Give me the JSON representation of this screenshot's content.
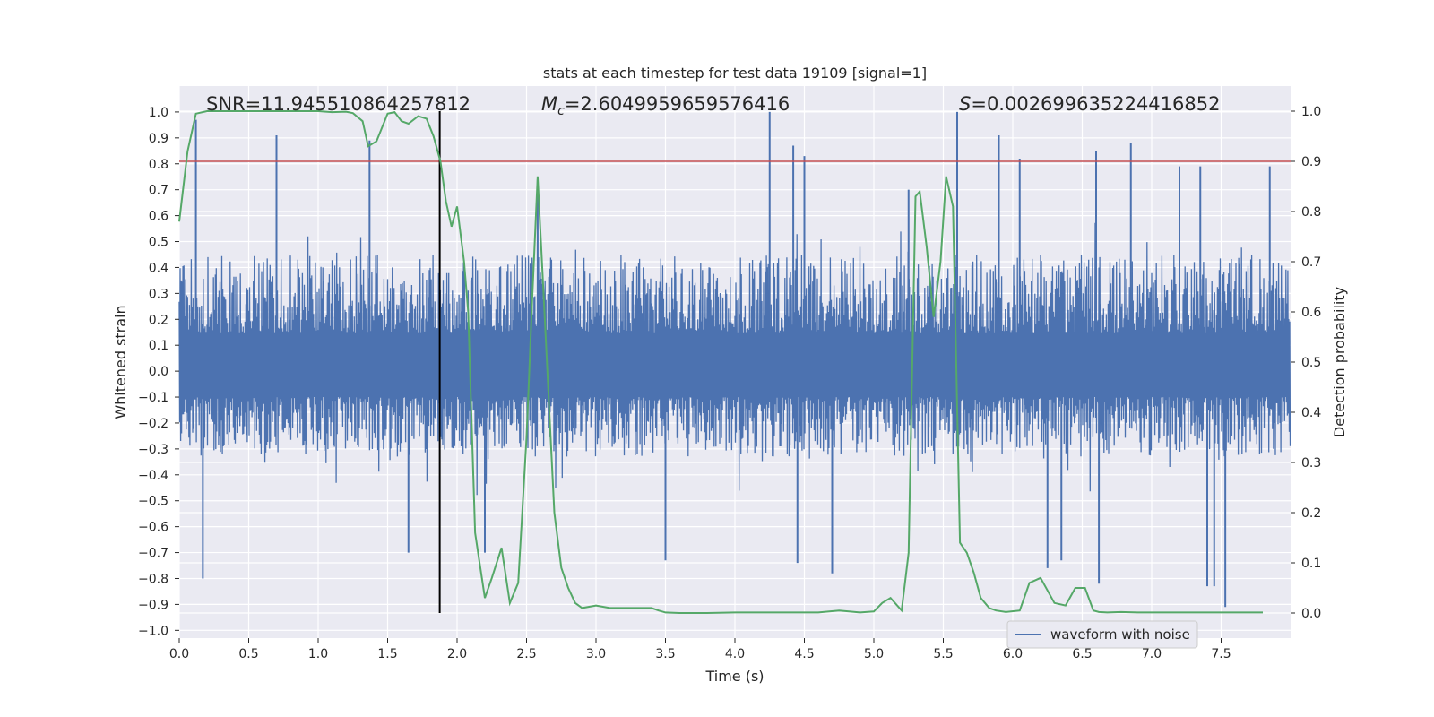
{
  "chart_data": {
    "type": "line",
    "title": "stats at each timestep for test data 19109 [signal=1]",
    "xlabel": "Time (s)",
    "ylabel_left": "Whitened strain",
    "ylabel_right": "Detection probability",
    "xlim": [
      0,
      8
    ],
    "ylim_left": [
      -1.03,
      1.1
    ],
    "ylim_right": [
      -0.05,
      1.05
    ],
    "x_ticks": [
      "0.0",
      "0.5",
      "1.0",
      "1.5",
      "2.0",
      "2.5",
      "3.0",
      "3.5",
      "4.0",
      "4.5",
      "5.0",
      "5.5",
      "6.0",
      "6.5",
      "7.0",
      "7.5"
    ],
    "y_ticks_left": [
      "-1.0",
      "-0.9",
      "-0.8",
      "-0.7",
      "-0.6",
      "-0.5",
      "-0.4",
      "-0.3",
      "-0.2",
      "-0.1",
      "0.0",
      "0.1",
      "0.2",
      "0.3",
      "0.4",
      "0.5",
      "0.6",
      "0.7",
      "0.8",
      "0.9",
      "1.0"
    ],
    "y_ticks_right": [
      "0.0",
      "0.1",
      "0.2",
      "0.3",
      "0.4",
      "0.5",
      "0.6",
      "0.7",
      "0.8",
      "0.9",
      "1.0"
    ],
    "annotations": {
      "snr": "SNR=11.945510864257812",
      "mc_symbol": "M",
      "mc_subscript": "c",
      "mc_value": "=2.6049959659576416",
      "s_symbol": "S",
      "s_value": "=0.002699635224416852"
    },
    "legend": {
      "label": "waveform with noise",
      "position": "lower-right"
    },
    "threshold_right": 0.9,
    "event_time": 1.875,
    "series": [
      {
        "name": "waveform with noise",
        "color": "#4c72b0",
        "axis": "left",
        "style": "noise",
        "typical_amplitude": [
          -0.33,
          0.45
        ],
        "spikes": [
          {
            "x": 0.12,
            "y": 0.97
          },
          {
            "x": 0.17,
            "y": -0.8
          },
          {
            "x": 0.7,
            "y": 0.91
          },
          {
            "x": 1.37,
            "y": 0.89
          },
          {
            "x": 2.58,
            "y": 0.74
          },
          {
            "x": 4.25,
            "y": 1.0
          },
          {
            "x": 4.42,
            "y": 0.87
          },
          {
            "x": 4.5,
            "y": 0.83
          },
          {
            "x": 5.6,
            "y": 1.0
          },
          {
            "x": 5.9,
            "y": 0.91
          },
          {
            "x": 6.05,
            "y": 0.82
          },
          {
            "x": 6.6,
            "y": 0.85
          },
          {
            "x": 6.85,
            "y": 0.88
          },
          {
            "x": 7.2,
            "y": 0.79
          },
          {
            "x": 7.35,
            "y": 0.79
          },
          {
            "x": 7.85,
            "y": 0.79
          },
          {
            "x": 7.4,
            "y": -0.83
          },
          {
            "x": 7.45,
            "y": -0.83
          },
          {
            "x": 7.53,
            "y": -0.91
          },
          {
            "x": 6.62,
            "y": -0.82
          },
          {
            "x": 1.65,
            "y": -0.7
          },
          {
            "x": 2.2,
            "y": -0.7
          },
          {
            "x": 3.5,
            "y": -0.73
          },
          {
            "x": 4.45,
            "y": -0.74
          },
          {
            "x": 4.7,
            "y": -0.78
          },
          {
            "x": 6.25,
            "y": -0.76
          },
          {
            "x": 6.35,
            "y": -0.73
          },
          {
            "x": 5.25,
            "y": 0.7
          }
        ]
      },
      {
        "name": "",
        "color": "#55a868",
        "axis": "right",
        "x": [
          0.0,
          0.06,
          0.12,
          0.2,
          0.3,
          0.5,
          0.7,
          0.9,
          1.0,
          1.1,
          1.2,
          1.25,
          1.32,
          1.36,
          1.42,
          1.5,
          1.55,
          1.6,
          1.65,
          1.72,
          1.78,
          1.83,
          1.88,
          1.92,
          1.96,
          2.0,
          2.05,
          2.08,
          2.13,
          2.2,
          2.25,
          2.32,
          2.38,
          2.44,
          2.5,
          2.54,
          2.58,
          2.62,
          2.65,
          2.7,
          2.75,
          2.8,
          2.85,
          2.9,
          3.0,
          3.1,
          3.2,
          3.3,
          3.4,
          3.45,
          3.5,
          3.6,
          3.8,
          4.0,
          4.2,
          4.4,
          4.6,
          4.75,
          4.9,
          5.0,
          5.06,
          5.12,
          5.2,
          5.25,
          5.3,
          5.33,
          5.38,
          5.43,
          5.48,
          5.52,
          5.57,
          5.62,
          5.67,
          5.72,
          5.77,
          5.83,
          5.88,
          5.95,
          6.05,
          6.12,
          6.2,
          6.3,
          6.38,
          6.45,
          6.52,
          6.58,
          6.62,
          6.68,
          6.78,
          6.9,
          7.0,
          7.2,
          7.5,
          7.8
        ],
        "values": [
          0.78,
          0.92,
          0.995,
          1.0,
          1.0,
          1.0,
          1.0,
          1.0,
          1.0,
          0.998,
          0.999,
          0.996,
          0.98,
          0.93,
          0.94,
          0.995,
          0.998,
          0.98,
          0.975,
          0.99,
          0.985,
          0.95,
          0.9,
          0.82,
          0.77,
          0.81,
          0.7,
          0.6,
          0.16,
          0.03,
          0.07,
          0.13,
          0.02,
          0.06,
          0.35,
          0.62,
          0.87,
          0.65,
          0.48,
          0.2,
          0.09,
          0.05,
          0.02,
          0.01,
          0.015,
          0.01,
          0.01,
          0.01,
          0.01,
          0.005,
          0.001,
          0.0,
          0.0,
          0.001,
          0.001,
          0.001,
          0.001,
          0.005,
          0.001,
          0.003,
          0.02,
          0.03,
          0.005,
          0.12,
          0.83,
          0.84,
          0.73,
          0.59,
          0.7,
          0.87,
          0.81,
          0.14,
          0.12,
          0.08,
          0.03,
          0.01,
          0.005,
          0.002,
          0.005,
          0.06,
          0.07,
          0.02,
          0.015,
          0.05,
          0.05,
          0.005,
          0.002,
          0.001,
          0.002,
          0.001,
          0.001,
          0.001,
          0.001,
          0.001
        ]
      }
    ],
    "grid": true
  }
}
